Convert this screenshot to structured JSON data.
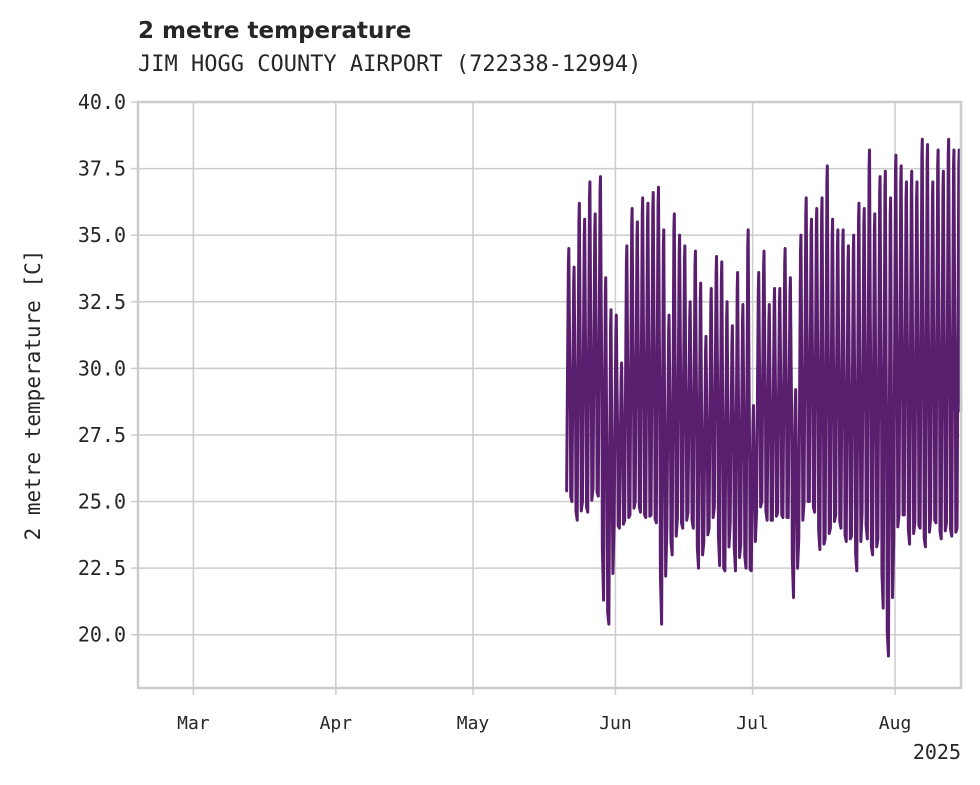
{
  "chart_data": {
    "type": "line",
    "title": "2 metre temperature",
    "subtitle": "JIM HOGG COUNTY AIRPORT (722338-12994)",
    "xlabel": "",
    "ylabel": "2 metre temperature [C]",
    "x_range_days": [
      -81,
      75
    ],
    "ylim": [
      18.0,
      40.0
    ],
    "y_ticks": [
      20.0,
      22.5,
      25.0,
      27.5,
      30.0,
      32.5,
      35.0,
      37.5,
      40.0
    ],
    "y_tick_labels": [
      "20.0",
      "22.5",
      "25.0",
      "27.5",
      "30.0",
      "32.5",
      "35.0",
      "37.5",
      "40.0"
    ],
    "x_ticks": [
      {
        "label": "Mar",
        "day": -70.5
      },
      {
        "label": "Apr",
        "day": -43.5
      },
      {
        "label": "May",
        "day": -17.5
      },
      {
        "label": "Jun",
        "day": 9.5
      },
      {
        "label": "Jul",
        "day": 35.5
      },
      {
        "label": "Aug",
        "day": 62.5
      }
    ],
    "x_year_label": "2025",
    "grid": true,
    "line_color": "#5a1e6e",
    "series": [
      {
        "name": "2 metre temperature",
        "period_start_day": 0,
        "period_end_day": 74.5,
        "daily_max": [
          34.5,
          33.8,
          36.2,
          35.6,
          37.0,
          35.8,
          37.2,
          33.4,
          32.2,
          32.0,
          30.2,
          34.6,
          36.0,
          35.5,
          36.4,
          36.2,
          36.6,
          36.8,
          35.2,
          32.0,
          35.8,
          35.0,
          34.6,
          32.5,
          34.4,
          33.2,
          31.2,
          33.0,
          34.2,
          34.0,
          32.5,
          31.6,
          33.6,
          32.4,
          35.2,
          28.6,
          33.6,
          34.4,
          32.4,
          33.0,
          33.0,
          34.5,
          33.4,
          29.2,
          35.0,
          36.4,
          35.6,
          36.0,
          36.4,
          37.6,
          35.6,
          35.2,
          35.2,
          34.6,
          35.0,
          36.2,
          36.0,
          38.2,
          35.8,
          37.2,
          37.4,
          36.4,
          38.0,
          37.6,
          37.0,
          37.4,
          37.0,
          38.6,
          38.4,
          37.0,
          38.2,
          37.4,
          38.6,
          38.2,
          38.2
        ],
        "daily_min": [
          25.4,
          25.0,
          24.3,
          25.0,
          24.6,
          25.5,
          25.2,
          21.3,
          20.4,
          24.2,
          24.0,
          24.3,
          24.5,
          25.0,
          24.6,
          24.4,
          24.5,
          24.2,
          20.4,
          24.0,
          23.0,
          24.4,
          24.0,
          24.6,
          24.0,
          22.5,
          23.5,
          24.0,
          24.8,
          22.6,
          22.4,
          24.2,
          22.4,
          23.4,
          22.5,
          22.4,
          24.6,
          25.0,
          24.3,
          24.3,
          24.6,
          24.4,
          24.4,
          21.4,
          23.6,
          25.0,
          25.0,
          24.6,
          23.2,
          23.6,
          24.0,
          24.5,
          24.0,
          23.5,
          23.7,
          22.4,
          24.6,
          23.6,
          23.0,
          23.6,
          21.0,
          19.2,
          23.6,
          24.5,
          24.5,
          23.4,
          24.2,
          24.0,
          23.3,
          24.4,
          24.2,
          23.6,
          24.2,
          23.7,
          24.0
        ]
      }
    ]
  }
}
